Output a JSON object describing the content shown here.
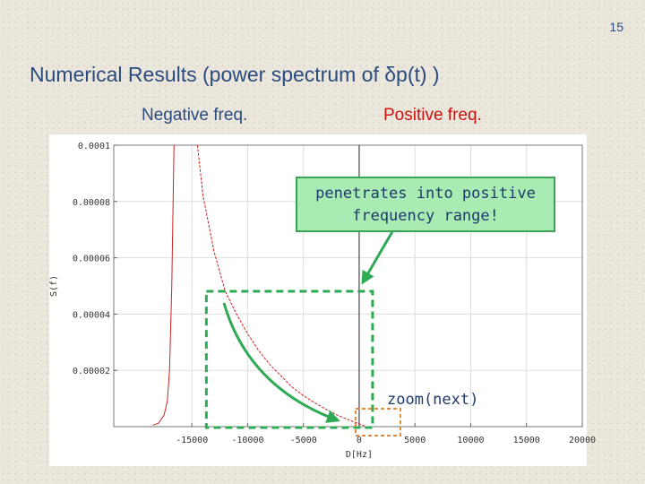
{
  "slide": {
    "number": "15",
    "title": "Numerical Results (power spectrum of δp(t) )",
    "negative_label": "Negative freq.",
    "positive_label": "Positive freq."
  },
  "annotations": {
    "callout": "penetrates into positive frequency range!",
    "zoom": "zoom(next)"
  },
  "colors": {
    "curve": "#cc2222",
    "highlight": "#2eaa55",
    "zoom_box": "#e08a3c",
    "title": "#2a4b80"
  },
  "chart_data": {
    "type": "line",
    "xlabel": "D[Hz]",
    "ylabel": "S(f)",
    "xlim": [
      -22000,
      20000
    ],
    "ylim": [
      0,
      0.0001
    ],
    "x_ticks": [
      -15000,
      -10000,
      -5000,
      0,
      5000,
      10000,
      15000,
      20000
    ],
    "x_tick_labels": [
      "-15000",
      "-10000",
      "-5000",
      "0",
      "5000",
      "10000",
      "15000",
      "20000"
    ],
    "y_ticks": [
      2e-05,
      4e-05,
      6e-05,
      8e-05,
      0.0001
    ],
    "y_tick_labels": [
      "0.00002",
      "0.00004",
      "0.00006",
      "0.00008",
      "0.0001"
    ],
    "series": [
      {
        "x": [
          -18500,
          -18000,
          -17500,
          -17200,
          -17000,
          -16800,
          -16600
        ],
        "y": [
          5e-07,
          1.2e-06,
          4e-06,
          9e-06,
          2e-05,
          5e-05,
          0.0001
        ]
      },
      {
        "x": [
          -14500,
          -14000,
          -13000,
          -12000,
          -11000,
          -10000,
          -9000,
          -8000,
          -7000,
          -6000,
          -5000,
          -4000,
          -3000,
          -2000,
          -1000,
          0,
          500
        ],
        "y": [
          0.0001,
          8.2e-05,
          6.2e-05,
          4.8e-05,
          4e-05,
          3.3e-05,
          2.7e-05,
          2.2e-05,
          1.8e-05,
          1.4e-05,
          1.1e-05,
          8.5e-06,
          6.2e-06,
          4.2e-06,
          2.5e-06,
          1e-06,
          3e-07
        ]
      }
    ],
    "grid": true
  }
}
